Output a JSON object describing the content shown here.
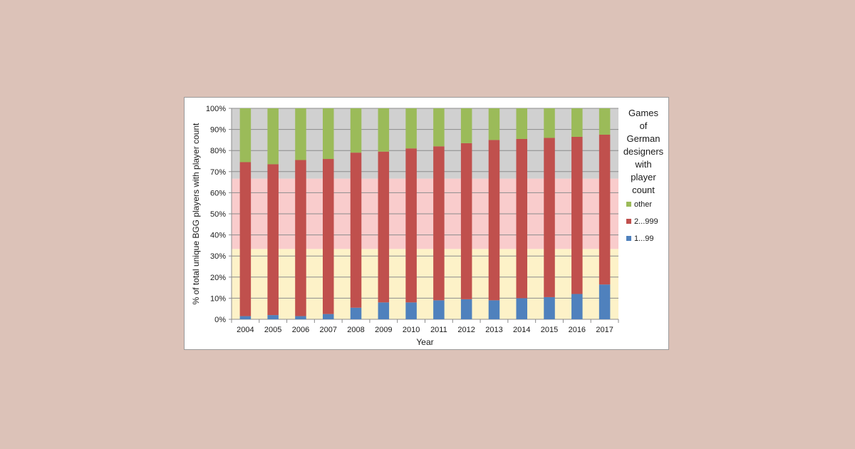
{
  "chart_data": {
    "type": "bar",
    "stacked": true,
    "categories": [
      "2004",
      "2005",
      "2006",
      "2007",
      "2008",
      "2009",
      "2010",
      "2011",
      "2012",
      "2013",
      "2014",
      "2015",
      "2016",
      "2017"
    ],
    "series": [
      {
        "name": "1...99",
        "color": "#4f81bd",
        "values": [
          1.5,
          2,
          1.5,
          2.5,
          5.5,
          8,
          8,
          9,
          9.5,
          9,
          10,
          10.5,
          12,
          16.5
        ]
      },
      {
        "name": "2...999",
        "color": "#c0504d",
        "values": [
          73,
          71.5,
          74,
          73.5,
          73.5,
          71.5,
          73,
          73,
          74,
          76,
          75.5,
          75.5,
          74.5,
          71
        ]
      },
      {
        "name": "other",
        "color": "#9bbb59",
        "values": [
          25.5,
          26.5,
          24.5,
          24,
          21,
          20.5,
          19,
          18,
          16.5,
          15,
          14.5,
          14,
          13.5,
          12.5
        ]
      }
    ],
    "bands": [
      {
        "from": 0,
        "to": 33.33,
        "color": "#fdf2c8"
      },
      {
        "from": 33.33,
        "to": 66.67,
        "color": "#f9cccc"
      },
      {
        "from": 66.67,
        "to": 100,
        "color": "#d0d0d0"
      }
    ],
    "yticks": [
      "0%",
      "10%",
      "20%",
      "30%",
      "40%",
      "50%",
      "60%",
      "70%",
      "80%",
      "90%",
      "100%"
    ],
    "ylim": [
      0,
      100
    ],
    "xlabel": "Year",
    "ylabel": "% of total unique BGG players with player count",
    "legend": {
      "title_lines": [
        "Games",
        "of",
        "German",
        "designers",
        "with",
        "player",
        "count"
      ],
      "items": [
        "other",
        "2...999",
        "1...99"
      ],
      "placement": "right"
    }
  }
}
